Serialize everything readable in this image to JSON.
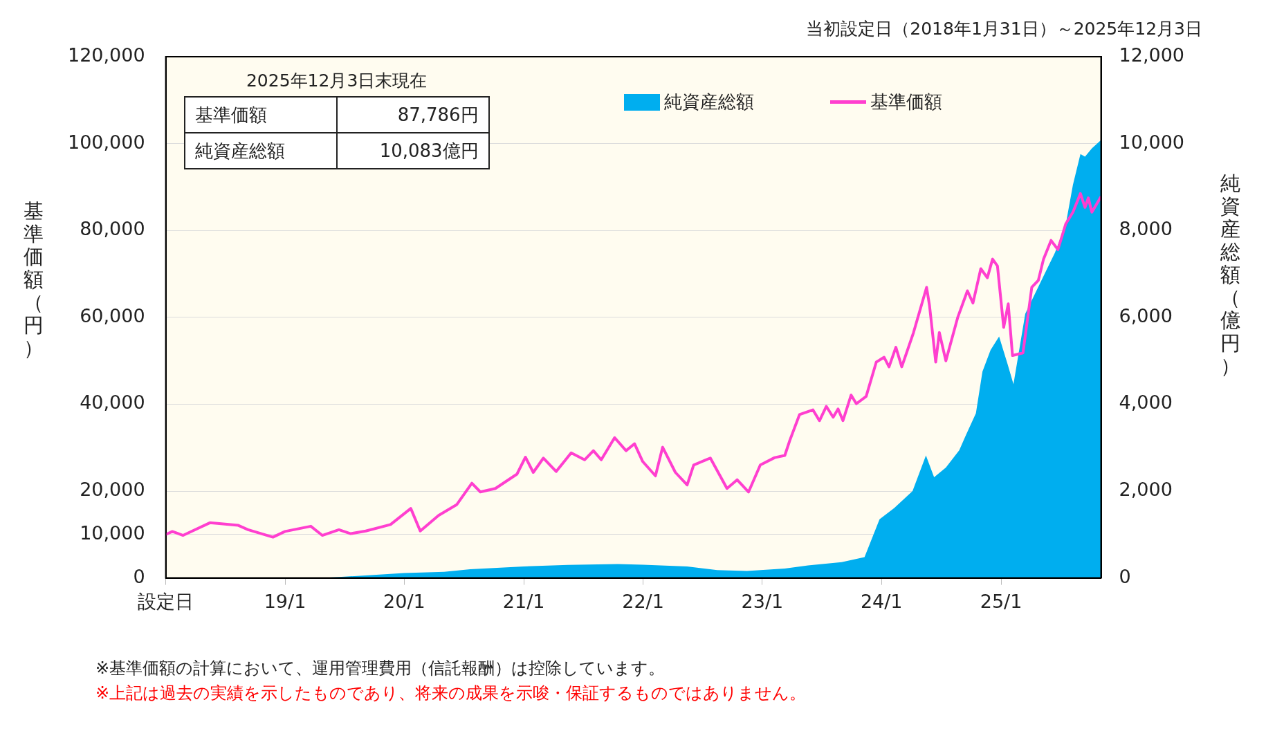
{
  "chart_data": {
    "type": "line",
    "title": "当初設定日（2018年1月31日）～2025年12月3日",
    "ylabel": "基準価額（円）",
    "y2label": "純資産総額（億円）",
    "xlim": [
      "2018-01-31",
      "2025-12-03"
    ],
    "xticks": [
      {
        "value": "2018-01-31",
        "label": "設定日"
      },
      {
        "value": "2019-01-31",
        "label": "19/1"
      },
      {
        "value": "2020-01-31",
        "label": "20/1"
      },
      {
        "value": "2021-01-31",
        "label": "21/1"
      },
      {
        "value": "2022-01-31",
        "label": "22/1"
      },
      {
        "value": "2023-01-31",
        "label": "23/1"
      },
      {
        "value": "2024-01-31",
        "label": "24/1"
      },
      {
        "value": "2025-01-31",
        "label": "25/1"
      }
    ],
    "ylim": [
      0,
      120000
    ],
    "yticks": [
      0,
      {
        "value": 10000,
        "label": "10,000"
      },
      {
        "value": 20000,
        "label": "20,000"
      },
      {
        "value": 40000,
        "label": "40,000"
      },
      {
        "value": 60000,
        "label": "60,000"
      },
      {
        "value": 80000,
        "label": "80,000"
      },
      {
        "value": 100000,
        "label": "100,000"
      },
      {
        "value": 120000,
        "label": "120,000"
      }
    ],
    "y2lim": [
      0,
      12000
    ],
    "y2ticks": [
      0,
      {
        "value": 2000,
        "label": "2,000"
      },
      {
        "value": 4000,
        "label": "4,000"
      },
      {
        "value": 6000,
        "label": "6,000"
      },
      {
        "value": 8000,
        "label": "8,000"
      },
      {
        "value": 10000,
        "label": "10,000"
      },
      {
        "value": 12000,
        "label": "12,000"
      }
    ],
    "grid": "y",
    "legend": "top right",
    "marker": "none",
    "series": [
      {
        "name": "純資産総額",
        "type": "area",
        "axis": "y2",
        "color": "#00aeef",
        "x": [
          "2018-01-31",
          "2019-06-01",
          "2020-01-31",
          "2020-06-01",
          "2020-08-20",
          "2021-01-31",
          "2021-06-15",
          "2021-11-15",
          "2022-01-31",
          "2022-06-15",
          "2022-09-15",
          "2022-12-15",
          "2023-04-10",
          "2023-06-20",
          "2023-10-01",
          "2023-12-10",
          "2024-01-25",
          "2024-03-10",
          "2024-05-05",
          "2024-06-15",
          "2024-07-10",
          "2024-08-15",
          "2024-09-25",
          "2024-10-15",
          "2024-11-15",
          "2024-12-05",
          "2024-12-30",
          "2025-01-25",
          "2025-02-20",
          "2025-03-10",
          "2025-04-15",
          "2025-06-03",
          "2025-07-15",
          "2025-08-17",
          "2025-09-08",
          "2025-10-01",
          "2025-10-15",
          "2025-11-05",
          "2025-12-03"
        ],
        "values": [
          0,
          0,
          115,
          140,
          200,
          265,
          300,
          320,
          305,
          265,
          180,
          160,
          215,
          290,
          365,
          480,
          1350,
          1610,
          2000,
          2820,
          2320,
          2540,
          2940,
          3280,
          3790,
          4750,
          5250,
          5560,
          4920,
          4460,
          6080,
          6840,
          7490,
          8140,
          9050,
          9760,
          9700,
          9890,
          10083
        ]
      },
      {
        "name": "基準価額",
        "type": "line",
        "axis": "y",
        "color": "#ff3fcf",
        "line_style": "solid",
        "x": [
          "2018-01-31",
          "2018-02-20",
          "2018-03-25",
          "2018-06-15",
          "2018-09-10",
          "2018-10-10",
          "2018-12-25",
          "2019-01-31",
          "2019-04-20",
          "2019-05-25",
          "2019-07-15",
          "2019-08-20",
          "2019-10-05",
          "2019-12-20",
          "2020-02-20",
          "2020-03-20",
          "2020-05-15",
          "2020-07-10",
          "2020-08-25",
          "2020-09-20",
          "2020-11-05",
          "2021-01-10",
          "2021-02-05",
          "2021-03-01",
          "2021-04-01",
          "2021-05-10",
          "2021-06-25",
          "2021-08-05",
          "2021-09-01",
          "2021-09-25",
          "2021-11-05",
          "2021-12-10",
          "2022-01-05",
          "2022-01-30",
          "2022-03-10",
          "2022-04-01",
          "2022-05-10",
          "2022-06-15",
          "2022-07-05",
          "2022-08-25",
          "2022-10-15",
          "2022-11-15",
          "2022-12-20",
          "2023-01-25",
          "2023-03-10",
          "2023-04-10",
          "2023-04-25",
          "2023-05-25",
          "2023-07-05",
          "2023-07-25",
          "2023-08-15",
          "2023-09-05",
          "2023-09-20",
          "2023-10-05",
          "2023-10-30",
          "2023-11-15",
          "2023-12-15",
          "2024-01-15",
          "2024-02-08",
          "2024-02-23",
          "2024-03-15",
          "2024-04-02",
          "2024-05-08",
          "2024-06-17",
          "2024-06-26",
          "2024-07-15",
          "2024-07-26",
          "2024-08-15",
          "2024-09-20",
          "2024-10-20",
          "2024-11-06",
          "2024-11-30",
          "2024-12-20",
          "2025-01-05",
          "2025-01-20",
          "2025-02-08",
          "2025-02-22",
          "2025-03-07",
          "2025-04-08",
          "2025-05-05",
          "2025-05-25",
          "2025-06-10",
          "2025-07-03",
          "2025-07-24",
          "2025-08-17",
          "2025-09-08",
          "2025-10-01",
          "2025-10-15",
          "2025-10-25",
          "2025-11-05",
          "2025-12-03"
        ],
        "values": [
          10000,
          10700,
          9800,
          12700,
          12100,
          11100,
          9400,
          10700,
          11900,
          9800,
          11100,
          10200,
          10800,
          12300,
          16000,
          10800,
          14400,
          16900,
          21800,
          19800,
          20600,
          23900,
          27800,
          24300,
          27600,
          24500,
          28800,
          27200,
          29300,
          27200,
          32300,
          29300,
          30900,
          26800,
          23500,
          30100,
          24300,
          21400,
          26000,
          27600,
          20600,
          22600,
          19800,
          26000,
          27700,
          28200,
          31600,
          37600,
          38700,
          36200,
          39500,
          37000,
          38900,
          36200,
          42100,
          40100,
          41800,
          49700,
          50800,
          48600,
          53100,
          48600,
          56500,
          66900,
          62700,
          49700,
          56500,
          50000,
          59900,
          66100,
          63300,
          71200,
          69100,
          73400,
          71800,
          57700,
          63100,
          51200,
          51800,
          66900,
          68500,
          73400,
          77700,
          75600,
          81500,
          84200,
          88500,
          85300,
          87500,
          84200,
          87786
        ]
      }
    ],
    "annotations": [
      "2025年12月3日末現在",
      "基準価額",
      "87,786円",
      "純資産総額",
      "10,083億円",
      "※基準価額の計算において、運用管理費用（信託報酬）は控除しています。",
      "※上記は過去の実績を示したものであり、将来の成果を示唆・保証するものではありません。"
    ]
  }
}
